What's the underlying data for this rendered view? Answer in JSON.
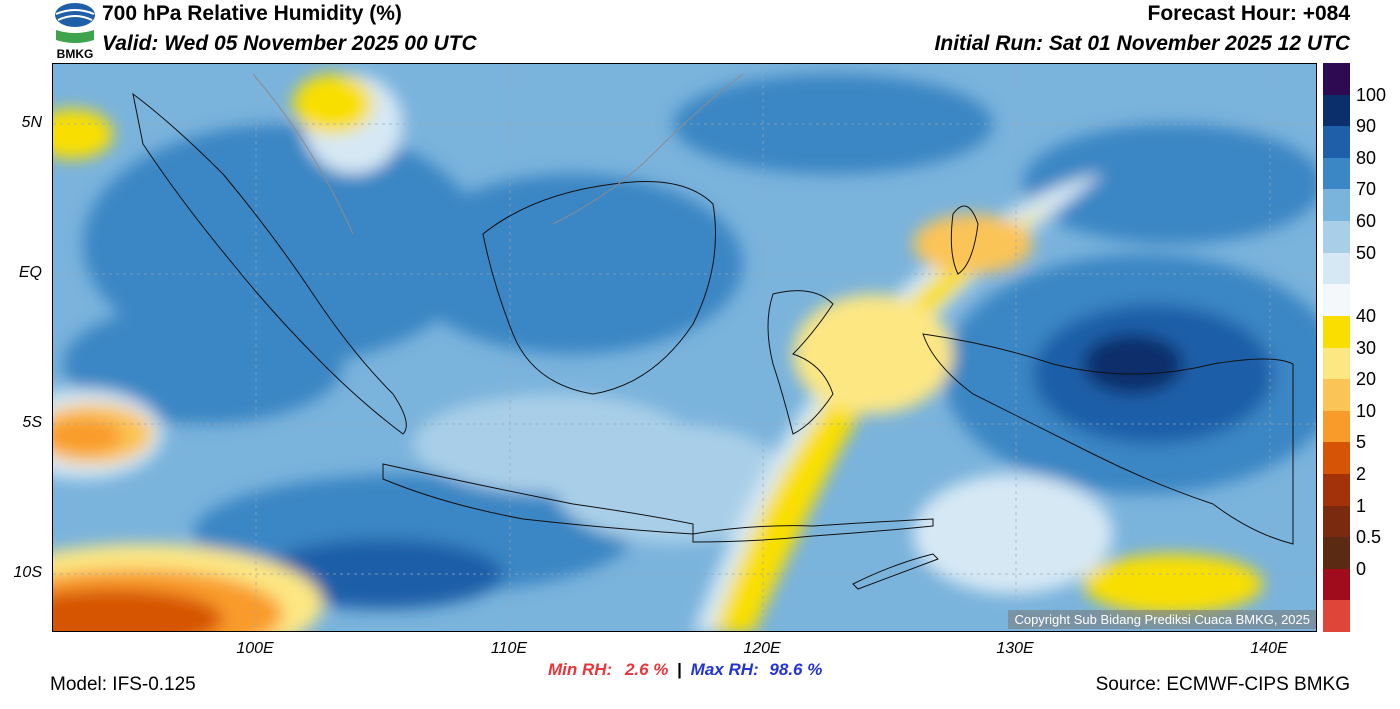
{
  "header": {
    "title": "700 hPa Relative Humidity (%)",
    "valid": "Valid: Wed 05 November 2025 00 UTC",
    "forecast_hour": "Forecast Hour: +084",
    "initial_run": "Initial Run: Sat 01 November 2025 12 UTC"
  },
  "logo": {
    "text": "BMKG"
  },
  "axes": {
    "lat_labels": [
      "5N",
      "EQ",
      "5S",
      "10S"
    ],
    "lon_labels": [
      "100E",
      "110E",
      "120E",
      "130E",
      "140E"
    ]
  },
  "colorbar": {
    "labels": [
      "100",
      "90",
      "80",
      "70",
      "60",
      "50",
      "40",
      "30",
      "20",
      "10",
      "5",
      "2",
      "1",
      "0.5",
      "0"
    ],
    "colors": [
      "#2e0a52",
      "#0b2f6b",
      "#1f5ea8",
      "#3b86c4",
      "#7ab3dc",
      "#a9cfe8",
      "#d6e8f4",
      "#f5f8fa",
      "#f9df00",
      "#fde783",
      "#fbc457",
      "#f99b2a",
      "#d65406",
      "#a3320a",
      "#7a2a0e",
      "#5b2a12",
      "#a00c1c",
      "#e0453a"
    ]
  },
  "stats": {
    "min_label": "Min RH:",
    "min_value": "2.6 %",
    "separator": "|",
    "max_label": "Max RH:",
    "max_value": "98.6 %"
  },
  "footer": {
    "model": "Model: IFS-0.125",
    "source": "Source: ECMWF-CIPS BMKG",
    "copyright": "Copyright Sub Bidang Prediksi Cuaca BMKG, 2025"
  }
}
